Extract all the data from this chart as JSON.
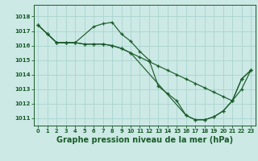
{
  "bg_color": "#cce9e5",
  "grid_color": "#aad4cf",
  "line_color": "#1a5c2a",
  "xlabel": "Graphe pression niveau de la mer (hPa)",
  "xlabel_fontsize": 7.0,
  "ylim": [
    1010.5,
    1018.8
  ],
  "xlim": [
    -0.5,
    23.5
  ],
  "yticks": [
    1011,
    1012,
    1013,
    1014,
    1015,
    1016,
    1017,
    1018
  ],
  "xticks": [
    0,
    1,
    2,
    3,
    4,
    5,
    6,
    7,
    8,
    9,
    10,
    11,
    12,
    13,
    14,
    15,
    16,
    17,
    18,
    19,
    20,
    21,
    22,
    23
  ],
  "series": [
    {
      "x": [
        0,
        1,
        2,
        3,
        4,
        6,
        7,
        8,
        9,
        10,
        11,
        12,
        13,
        14,
        15,
        16,
        17,
        18,
        19,
        20,
        21,
        22,
        23
      ],
      "y": [
        1017.4,
        1016.8,
        1016.2,
        1016.2,
        1016.2,
        1017.3,
        1017.5,
        1017.6,
        1016.8,
        1016.3,
        1015.6,
        1015.0,
        1013.2,
        1012.7,
        1012.2,
        1011.2,
        1010.9,
        1010.9,
        1011.1,
        1011.5,
        1012.2,
        1013.7,
        1014.3
      ]
    },
    {
      "x": [
        0,
        1,
        2,
        3,
        4,
        5,
        6,
        7,
        8,
        9,
        10,
        11,
        12,
        13,
        14,
        15,
        16,
        17,
        18,
        19,
        20,
        21,
        22,
        23
      ],
      "y": [
        1017.4,
        1016.8,
        1016.2,
        1016.2,
        1016.2,
        1016.1,
        1016.1,
        1016.1,
        1016.0,
        1015.8,
        1015.5,
        1015.2,
        1014.9,
        1014.6,
        1014.3,
        1014.0,
        1013.7,
        1013.4,
        1013.1,
        1012.8,
        1012.5,
        1012.2,
        1013.0,
        1014.3
      ]
    },
    {
      "x": [
        0,
        1,
        2,
        3,
        4,
        5,
        6,
        7,
        8,
        9,
        10,
        16,
        17,
        18,
        19,
        20,
        21,
        22,
        23
      ],
      "y": [
        1017.4,
        1016.8,
        1016.2,
        1016.2,
        1016.2,
        1016.1,
        1016.1,
        1016.1,
        1016.0,
        1015.8,
        1015.5,
        1011.2,
        1010.9,
        1010.9,
        1011.1,
        1011.5,
        1012.2,
        1013.7,
        1014.3
      ]
    }
  ]
}
